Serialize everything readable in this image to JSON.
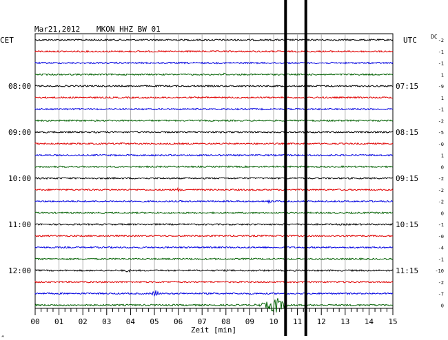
{
  "header": {
    "date": "Mar21,2012",
    "station": "MKON HHZ BW 01",
    "left_tz": "CET",
    "right_tz": "UTC",
    "dc_label": "DC"
  },
  "chart_data": {
    "type": "line",
    "title": "Mar21,2012   MKON HHZ BW 01",
    "xlabel": "Zeit [min]",
    "x_ticks": [
      "00",
      "01",
      "02",
      "03",
      "04",
      "05",
      "06",
      "07",
      "08",
      "09",
      "10",
      "11",
      "12",
      "13",
      "14",
      "15"
    ],
    "xlim": [
      0,
      15
    ],
    "row_minutes": 15,
    "grid": true,
    "trace_colors": [
      "#000000",
      "#e00000",
      "#0000e0",
      "#006000"
    ],
    "rows": 24,
    "left_time_labels": [
      {
        "row": 4,
        "label": "08:00"
      },
      {
        "row": 8,
        "label": "09:00"
      },
      {
        "row": 12,
        "label": "10:00"
      },
      {
        "row": 16,
        "label": "11:00"
      },
      {
        "row": 20,
        "label": "12:00"
      }
    ],
    "right_time_labels": [
      {
        "row": 4,
        "label": "07:15"
      },
      {
        "row": 8,
        "label": "08:15"
      },
      {
        "row": 12,
        "label": "09:15"
      },
      {
        "row": 16,
        "label": "10:15"
      },
      {
        "row": 20,
        "label": "11:15"
      }
    ],
    "dc_offsets": [
      "-2",
      "-1",
      "-1",
      "1",
      "-9",
      "1",
      "-1",
      "-2",
      "-5",
      "-0",
      "1",
      "0",
      "-2",
      "-2",
      "-2",
      "0",
      "-1",
      "-0",
      "-4",
      "-1",
      "-10",
      "-2",
      "-7",
      "0"
    ],
    "events": [
      {
        "row": 3,
        "minute": 7.9,
        "amplitude": "small"
      },
      {
        "row": 9,
        "minute": 3.6,
        "amplitude": "small"
      },
      {
        "row": 13,
        "minute": 6.0,
        "amplitude": "small"
      },
      {
        "row": 14,
        "minute": 9.8,
        "amplitude": "small"
      },
      {
        "row": 20,
        "minute": 3.9,
        "amplitude": "small"
      },
      {
        "row": 22,
        "minute": 5.05,
        "amplitude": "medium"
      },
      {
        "row": 23,
        "minute": 10.1,
        "amplitude": "large"
      }
    ],
    "vertical_markers_minutes": [
      10.5,
      11.35
    ]
  },
  "footer_mark": "⟑"
}
